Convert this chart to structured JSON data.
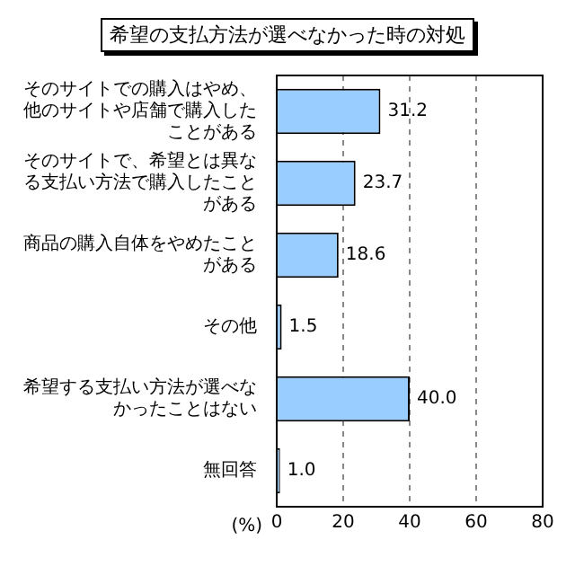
{
  "chart_data": {
    "type": "bar",
    "orientation": "horizontal",
    "title": "希望の支払方法が選べなかった時の対処",
    "xlabel": "(%)",
    "categories": [
      "そのサイトでの購入はやめ、他のサイトや店舗で購入したことがある",
      "そのサイトで、希望とは異なる支払い方法で購入したことがある",
      "商品の購入自体をやめたことがある",
      "その他",
      "希望する支払い方法が選べなかったことはない",
      "無回答"
    ],
    "values": [
      31.2,
      23.7,
      18.6,
      1.5,
      40.0,
      1.0
    ],
    "color": "#99ccff",
    "xlim": [
      0,
      80
    ],
    "xticks": [
      0,
      20,
      40,
      60,
      80
    ],
    "grid": "x",
    "value_labels": [
      "31.2",
      "23.7",
      "18.6",
      "1.5",
      "40.0",
      "1.0"
    ],
    "legend": false
  }
}
